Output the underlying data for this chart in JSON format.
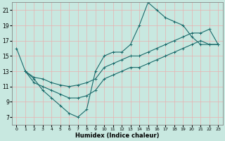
{
  "xlabel": "Humidex (Indice chaleur)",
  "ylabel": "",
  "xlim": [
    -0.5,
    23.5
  ],
  "ylim": [
    6,
    22
  ],
  "yticks": [
    7,
    9,
    11,
    13,
    15,
    17,
    19,
    21
  ],
  "xticks": [
    0,
    1,
    2,
    3,
    4,
    5,
    6,
    7,
    8,
    9,
    10,
    11,
    12,
    13,
    14,
    15,
    16,
    17,
    18,
    19,
    20,
    21,
    22,
    23
  ],
  "bg_color": "#c8e8e0",
  "grid_color": "#e8b0b0",
  "line_color": "#1a6b6b",
  "line1_x": [
    0,
    1,
    2,
    3,
    4,
    5,
    6,
    7,
    8,
    9,
    10,
    11,
    12,
    13,
    14,
    15,
    16,
    17,
    18,
    19,
    20,
    21,
    22,
    23
  ],
  "line1_y": [
    16,
    13,
    12,
    10.5,
    9.5,
    8.5,
    7.5,
    7,
    8,
    13,
    15,
    15.5,
    15.5,
    16.5,
    19,
    22,
    21,
    20,
    19.5,
    19,
    17.5,
    16.5,
    16.5,
    16.5
  ],
  "line2_x": [
    1,
    2,
    3,
    4,
    5,
    6,
    7,
    8,
    9,
    10,
    11,
    12,
    13,
    14,
    15,
    16,
    17,
    18,
    19,
    20,
    21,
    22,
    23
  ],
  "line2_y": [
    13,
    12.2,
    12,
    11.5,
    11.2,
    11,
    11.2,
    11.5,
    12,
    13.5,
    14,
    14.5,
    15,
    15,
    15.5,
    16,
    16.5,
    17,
    17.5,
    18,
    18,
    18.5,
    16.5
  ],
  "line3_x": [
    1,
    2,
    3,
    4,
    5,
    6,
    7,
    8,
    9,
    10,
    11,
    12,
    13,
    14,
    15,
    16,
    17,
    18,
    19,
    20,
    21,
    22,
    23
  ],
  "line3_y": [
    13,
    11.5,
    11,
    10.5,
    10,
    9.5,
    9.5,
    9.8,
    10.5,
    12,
    12.5,
    13,
    13.5,
    13.5,
    14,
    14.5,
    15,
    15.5,
    16,
    16.5,
    17,
    16.5,
    16.5
  ]
}
